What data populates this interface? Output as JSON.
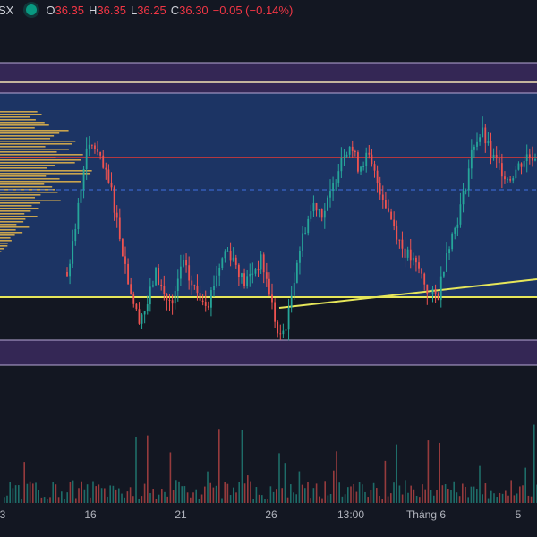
{
  "symbol": "SX",
  "status_color": "#089981",
  "ohlc": {
    "o_key": "O",
    "o_val": "36.35",
    "h_key": "H",
    "h_val": "36.35",
    "l_key": "L",
    "l_val": "36.25",
    "c_key": "C",
    "c_val": "36.30",
    "change": "−0.05 (−0.14%)"
  },
  "x_axis": {
    "labels": [
      "3",
      "16",
      "21",
      "26",
      "13:00",
      "Tháng 6",
      "5"
    ]
  },
  "colors": {
    "background": "#131722",
    "up": "#26a69a",
    "down": "#ef5350",
    "zone": "#1e3a6e",
    "band": "#3b2a5e",
    "support": "#e6e65a",
    "resistance": "#e53935",
    "profile": "#e8b84a"
  },
  "chart_data": {
    "type": "candlestick",
    "price_levels": {
      "band_top_upper": 37.0,
      "band_top_lower": 36.85,
      "resistance_white": 36.72,
      "poc_red": 35.95,
      "dashed_mid": 35.75,
      "support_yellow": 34.9,
      "band_bottom_upper": 34.55,
      "band_bottom_lower": 34.4
    },
    "close_path": [
      35.2,
      35.6,
      36.2,
      36.3,
      36.1,
      35.9,
      35.5,
      35.1,
      34.8,
      34.9,
      35.2,
      35.0,
      34.9,
      35.3,
      35.1,
      35.0,
      34.95,
      35.2,
      35.4,
      35.3,
      35.1,
      35.2,
      35.3,
      35.0,
      34.6,
      34.8,
      35.3,
      35.6,
      35.8,
      35.7,
      35.9,
      36.2,
      36.3,
      36.1,
      36.2,
      36.0,
      35.8,
      35.6,
      35.4,
      35.3,
      35.2,
      35.0,
      35.0,
      35.4,
      35.6,
      35.9,
      36.3,
      36.4,
      36.2,
      36.1,
      36.0,
      36.1,
      36.2,
      36.2
    ]
  }
}
